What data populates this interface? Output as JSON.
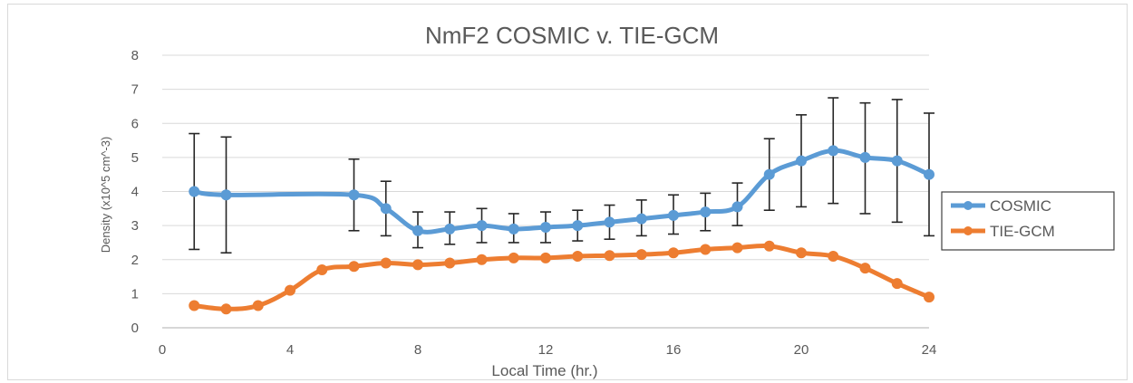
{
  "chart_data": {
    "type": "line",
    "title": "NmF2 COSMIC v. TIE-GCM",
    "xlabel": "Local Time (hr.)",
    "ylabel": "Density (x10^5 cm^-3)",
    "xlim": [
      0,
      24
    ],
    "ylim": [
      0,
      8
    ],
    "x_ticks": [
      "0",
      "4",
      "8",
      "12",
      "16",
      "20",
      "24"
    ],
    "y_ticks": [
      "0",
      "1",
      "2",
      "3",
      "4",
      "5",
      "6",
      "7",
      "8"
    ],
    "grid": "horizontal",
    "legend_position": "right",
    "series": [
      {
        "name": "COSMIC",
        "color": "#5b9bd5",
        "marker": "circle",
        "x": [
          1,
          2,
          6,
          7,
          8,
          9,
          10,
          11,
          12,
          13,
          14,
          15,
          16,
          17,
          18,
          19,
          20,
          21,
          22,
          23,
          24
        ],
        "y": [
          4.0,
          3.9,
          3.9,
          3.5,
          2.85,
          2.9,
          3.0,
          2.9,
          2.95,
          3.0,
          3.1,
          3.2,
          3.3,
          3.4,
          3.55,
          4.5,
          4.9,
          5.2,
          5.0,
          4.9,
          4.5
        ],
        "error_low": [
          2.3,
          2.2,
          2.85,
          2.7,
          2.35,
          2.45,
          2.5,
          2.5,
          2.5,
          2.55,
          2.6,
          2.7,
          2.75,
          2.85,
          3.0,
          3.45,
          3.55,
          3.65,
          3.35,
          3.1,
          2.7
        ],
        "error_high": [
          5.7,
          5.6,
          4.95,
          4.3,
          3.4,
          3.4,
          3.5,
          3.35,
          3.4,
          3.45,
          3.6,
          3.75,
          3.9,
          3.95,
          4.25,
          5.55,
          6.25,
          6.75,
          6.6,
          6.7,
          6.3
        ]
      },
      {
        "name": "TIE-GCM",
        "color": "#ed7d31",
        "marker": "circle",
        "x": [
          1,
          2,
          3,
          4,
          5,
          6,
          7,
          8,
          9,
          10,
          11,
          12,
          13,
          14,
          15,
          16,
          17,
          18,
          19,
          20,
          21,
          22,
          23,
          24
        ],
        "y": [
          0.65,
          0.55,
          0.65,
          1.1,
          1.7,
          1.8,
          1.9,
          1.85,
          1.9,
          2.0,
          2.05,
          2.05,
          2.1,
          2.12,
          2.15,
          2.2,
          2.3,
          2.35,
          2.4,
          2.2,
          2.1,
          1.75,
          1.3,
          0.9
        ]
      }
    ]
  }
}
